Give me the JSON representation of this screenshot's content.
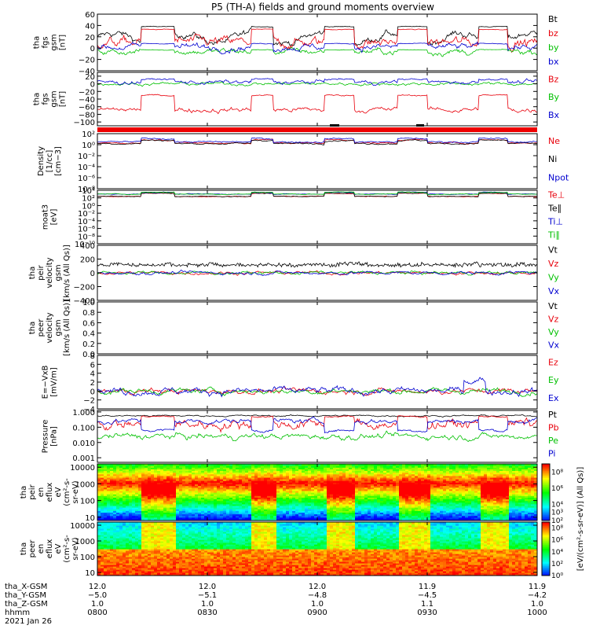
{
  "title": "P5 (TH-A) fields and ground moments overview",
  "chart_data": {
    "type": "line",
    "panels": [
      {
        "id": "fgs",
        "ylabel": [
          "tha",
          "fgs",
          "gsm",
          "[nT]"
        ],
        "ylim": [
          -40,
          60
        ],
        "ticks": [
          "60",
          "40",
          "20",
          "0",
          "−20",
          "−40"
        ],
        "ticksAt": [
          60,
          40,
          20,
          0,
          -20,
          -40
        ],
        "series": [
          {
            "name": "Bt",
            "color": "#000000"
          },
          {
            "name": "bz",
            "color": "#e8000b"
          },
          {
            "name": "by",
            "color": "#00c000"
          },
          {
            "name": "bx",
            "color": "#0000d0"
          }
        ]
      },
      {
        "id": "fgs_gsm",
        "ylabel": [
          "tha",
          "fgs",
          "gsm",
          "[nT]"
        ],
        "ylim": [
          -110,
          30
        ],
        "ticks": [
          "20",
          "0",
          "−20",
          "−40",
          "−60",
          "−80",
          "−100"
        ],
        "ticksAt": [
          20,
          0,
          -20,
          -40,
          -60,
          -80,
          -100
        ],
        "series": [
          {
            "name": "Bz",
            "color": "#e8000b"
          },
          {
            "name": "By",
            "color": "#00c000"
          },
          {
            "name": "Bx",
            "color": "#0000d0"
          }
        ]
      },
      {
        "id": "density",
        "ylabel": [
          "Density",
          "[1/cc]",
          "[cm−3]"
        ],
        "log": true,
        "ylim": [
          -8,
          2
        ],
        "ticks": [
          "10²",
          "10⁰",
          "10⁻²",
          "10⁻⁴",
          "10⁻⁶",
          "10⁻⁸"
        ],
        "ticksAt": [
          2,
          0,
          -2,
          -4,
          -6,
          -8
        ],
        "series": [
          {
            "name": "Ne",
            "color": "#e8000b"
          },
          {
            "name": "Ni",
            "color": "#000000"
          },
          {
            "name": "Npot",
            "color": "#0000d0"
          }
        ]
      },
      {
        "id": "temp",
        "ylabel": [
          "moat3",
          "[eV]"
        ],
        "log": true,
        "ylim": [
          -10,
          4
        ],
        "ticks": [
          "10⁴",
          "10²",
          "10⁰",
          "10⁻²",
          "10⁻⁴",
          "10⁻⁶",
          "10⁻⁸",
          "10⁻¹⁰"
        ],
        "ticksAt": [
          4,
          2,
          0,
          -2,
          -4,
          -6,
          -8,
          -10
        ],
        "series": [
          {
            "name": "Te⊥",
            "color": "#e8000b"
          },
          {
            "name": "Te∥",
            "color": "#000000"
          },
          {
            "name": "Ti⊥",
            "color": "#0000d0"
          },
          {
            "name": "Ti∥",
            "color": "#00c000"
          }
        ]
      },
      {
        "id": "peir_vel",
        "ylabel": [
          "tha",
          "peir",
          "velocity",
          "gsm",
          "[km/s (All Qs)]"
        ],
        "ylim": [
          -400,
          400
        ],
        "ticks": [
          "400",
          "200",
          "0",
          "−200",
          "−400"
        ],
        "ticksAt": [
          400,
          200,
          0,
          -200,
          -400
        ],
        "series": [
          {
            "name": "Vt",
            "color": "#000000"
          },
          {
            "name": "Vz",
            "color": "#e8000b"
          },
          {
            "name": "Vy",
            "color": "#00c000"
          },
          {
            "name": "Vx",
            "color": "#0000d0"
          }
        ]
      },
      {
        "id": "peer_vel",
        "ylabel": [
          "tha",
          "peer",
          "velocity",
          "gsm",
          "[km/s (All Qs)]"
        ],
        "ylim": [
          0,
          1
        ],
        "ticks": [
          "1.0",
          "0.8",
          "0.6",
          "0.4",
          "0.2",
          "0.0"
        ],
        "ticksAt": [
          1,
          0.8,
          0.6,
          0.4,
          0.2,
          0
        ],
        "series": [
          {
            "name": "Vt",
            "color": "#000000"
          },
          {
            "name": "Vz",
            "color": "#e8000b"
          },
          {
            "name": "Vy",
            "color": "#00c000"
          },
          {
            "name": "Vx",
            "color": "#0000d0"
          }
        ]
      },
      {
        "id": "efield",
        "ylabel": [
          "E=−VxB",
          "[mV/m]"
        ],
        "ylim": [
          -4,
          8
        ],
        "ticks": [
          "8",
          "6",
          "4",
          "2",
          "0",
          "−2",
          "−4"
        ],
        "ticksAt": [
          8,
          6,
          4,
          2,
          0,
          -2,
          -4
        ],
        "series": [
          {
            "name": "Ez",
            "color": "#e8000b"
          },
          {
            "name": "Ey",
            "color": "#00c000"
          },
          {
            "name": "Ex",
            "color": "#0000d0"
          }
        ]
      },
      {
        "id": "pressure",
        "ylabel": [
          "Pressure",
          "[nPa]"
        ],
        "log": true,
        "ylim": [
          -3.3,
          0.1
        ],
        "ticks": [
          "1.000",
          "0.100",
          "0.010",
          "0.001"
        ],
        "ticksAt": [
          0,
          -1,
          -2,
          -3
        ],
        "series": [
          {
            "name": "Pt",
            "color": "#000000"
          },
          {
            "name": "Pb",
            "color": "#e8000b"
          },
          {
            "name": "Pe",
            "color": "#00c000"
          },
          {
            "name": "Pi",
            "color": "#0000d0"
          }
        ]
      },
      {
        "id": "peir_en",
        "ylabel": [
          "tha",
          "peir",
          "en",
          "eflux",
          "eV",
          "(cm²-s-",
          "sr-eV)"
        ],
        "log": true,
        "ylim": [
          0.8,
          4.2
        ],
        "ticks": [
          "10000",
          "1000",
          "100",
          "10"
        ],
        "ticksAt": [
          4,
          3,
          2,
          1
        ],
        "spectrogram": true,
        "kind": "ion"
      },
      {
        "id": "peer_en",
        "ylabel": [
          "tha",
          "peer",
          "en",
          "eflux",
          "eV",
          "(cm²-s-",
          "sr-eV)"
        ],
        "log": true,
        "ylim": [
          0.8,
          4.2
        ],
        "ticks": [
          "10000",
          "1000",
          "100",
          "10"
        ],
        "ticksAt": [
          4,
          3,
          2,
          1
        ],
        "spectrogram": true,
        "kind": "electron"
      }
    ],
    "colorbar": {
      "label": "[eV/(cm²-s-sr-eV)] (All Qs)]",
      "top_ticks": [
        "10⁸",
        "10⁶",
        "10⁴",
        "10³",
        "10²"
      ],
      "top_ticks_at": [
        8,
        6,
        4,
        3,
        2
      ],
      "bottom_ticks": [
        "10⁸",
        "10⁶",
        "10⁴",
        "10²",
        "10⁰"
      ],
      "bottom_ticks_at": [
        8,
        6,
        4,
        2,
        0
      ]
    },
    "xaxis": {
      "rows": [
        {
          "label": "tha_X-GSM",
          "values": [
            "12.0",
            "12.0",
            "12.0",
            "11.9",
            "11.9"
          ]
        },
        {
          "label": "tha_Y-GSM",
          "values": [
            "−5.0",
            "−5.1",
            "−4.8",
            "−4.5",
            "−4.2"
          ]
        },
        {
          "label": "tha_Z-GSM",
          "values": [
            "1.0",
            "1.0",
            "1.0",
            "1.1",
            "1.0"
          ]
        },
        {
          "label": "hhmm",
          "values": [
            "0800",
            "0830",
            "0900",
            "0930",
            "1000"
          ]
        }
      ],
      "date": "2021 Jan 26",
      "time_minutes": [
        0,
        30,
        60,
        90,
        120
      ]
    }
  }
}
